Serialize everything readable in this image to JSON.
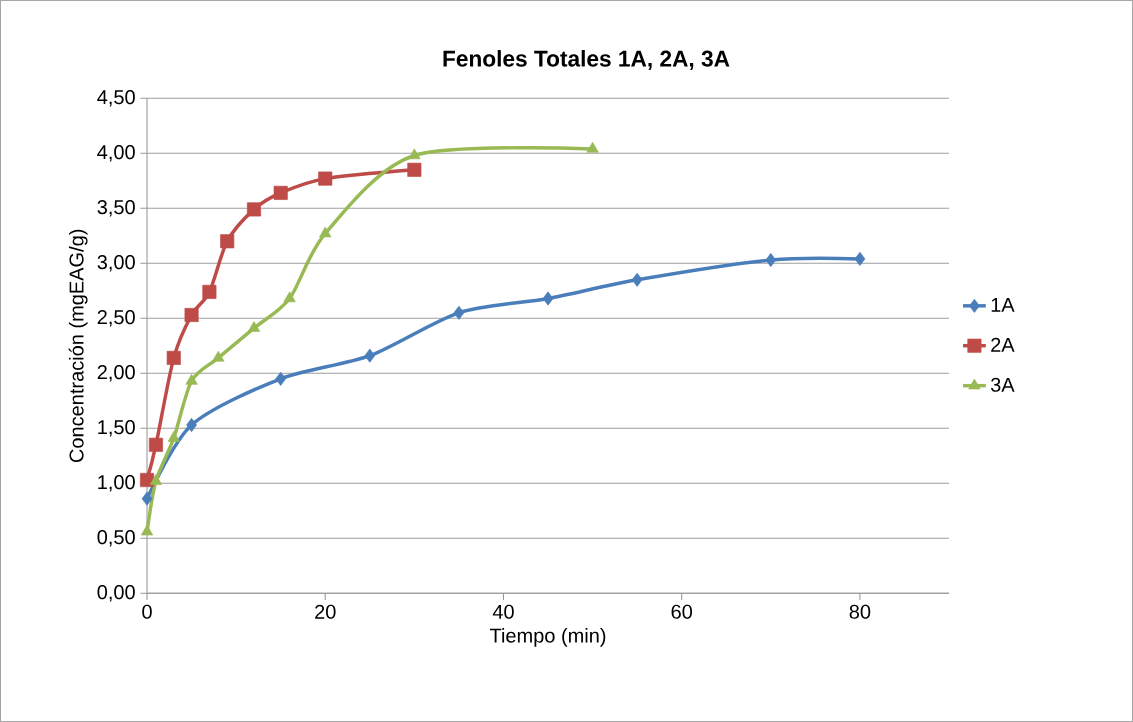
{
  "chart_data": {
    "type": "line",
    "title": "Fenoles Totales 1A, 2A, 3A",
    "xlabel": "Tiempo (min)",
    "ylabel": "Concentración (mgEAG/g)",
    "xlim": [
      0,
      90
    ],
    "xticks": [
      0,
      20,
      40,
      60,
      80
    ],
    "ylim": [
      0,
      4.5
    ],
    "yticks": [
      {
        "value": 0,
        "label": "0,00"
      },
      {
        "value": 0.5,
        "label": "0,50"
      },
      {
        "value": 1,
        "label": "1,00"
      },
      {
        "value": 1.5,
        "label": "1,50"
      },
      {
        "value": 2,
        "label": "2,00"
      },
      {
        "value": 2.5,
        "label": "2,50"
      },
      {
        "value": 3,
        "label": "3,00"
      },
      {
        "value": 3.5,
        "label": "3,50"
      },
      {
        "value": 4,
        "label": "4,00"
      },
      {
        "value": 4.5,
        "label": "4,50"
      }
    ],
    "grid": "y",
    "legend": "right",
    "line_style": "solid",
    "series": [
      {
        "name": "1A",
        "color": "#4a7ebb",
        "marker": "diamond",
        "x": [
          0,
          5,
          15,
          25,
          35,
          45,
          55,
          70,
          80
        ],
        "values": [
          0.86,
          1.53,
          1.95,
          2.16,
          2.55,
          2.68,
          2.85,
          3.03,
          3.04
        ]
      },
      {
        "name": "2A",
        "color": "#be4b48",
        "marker": "square",
        "x": [
          0,
          1,
          3,
          5,
          7,
          9,
          12,
          15,
          20,
          30
        ],
        "values": [
          1.03,
          1.35,
          2.14,
          2.53,
          2.74,
          3.2,
          3.49,
          3.64,
          3.77,
          3.85
        ]
      },
      {
        "name": "3A",
        "color": "#98b954",
        "marker": "triangle",
        "x": [
          0,
          1,
          3,
          5,
          8,
          12,
          16,
          20,
          30,
          50
        ],
        "values": [
          0.56,
          1.02,
          1.41,
          1.93,
          2.14,
          2.41,
          2.68,
          3.27,
          3.98,
          4.04
        ]
      }
    ]
  }
}
